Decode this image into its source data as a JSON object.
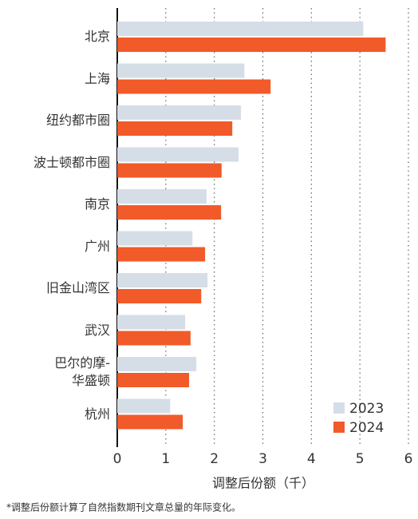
{
  "chart_data": {
    "type": "hbar",
    "categories": [
      "北京",
      "上海",
      "纽约都市圈",
      "波士顿都市圈",
      "南京",
      "广州",
      "旧金山湾区",
      "武汉",
      "巴尔的摩-\n华盛顿",
      "杭州"
    ],
    "series": [
      {
        "name": "2023",
        "color": "#d5dee7",
        "values": [
          5.07,
          2.62,
          2.55,
          2.5,
          1.84,
          1.55,
          1.86,
          1.4,
          1.63,
          1.09
        ]
      },
      {
        "name": "2024",
        "color": "#f15a29",
        "values": [
          5.53,
          3.16,
          2.37,
          2.15,
          2.14,
          1.81,
          1.73,
          1.51,
          1.48,
          1.35
        ]
      }
    ],
    "xlabel": "调整后份额（千）",
    "footnote": "*调整后份额计算了自然指数期刊文章总量的年际变化。",
    "xlim": [
      0,
      6
    ],
    "xticks": [
      0,
      1,
      2,
      3,
      4,
      5,
      6
    ],
    "grid": true,
    "legend": "lower-right"
  }
}
